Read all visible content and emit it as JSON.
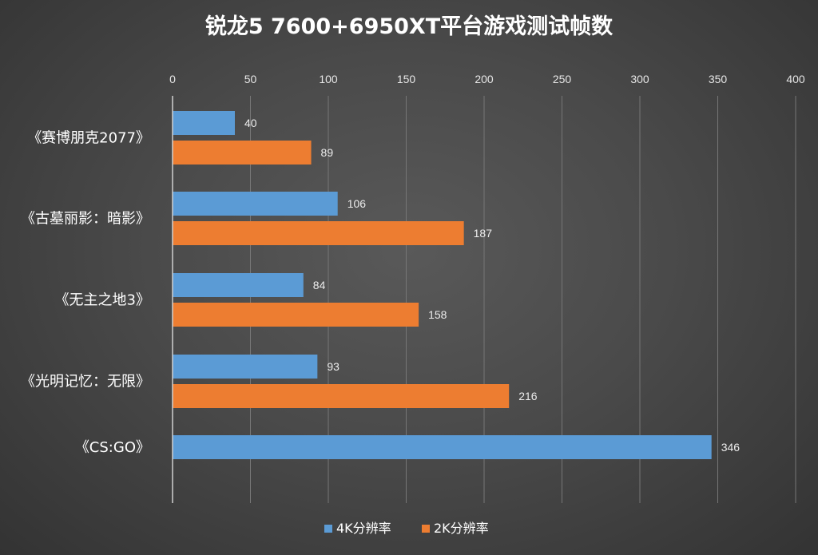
{
  "chart_data": {
    "type": "bar",
    "orientation": "horizontal",
    "title": "锐龙5 7600+6950XT平台游戏测试帧数",
    "categories": [
      "《赛博朋克2077》",
      "《古墓丽影：暗影》",
      "《无主之地3》",
      "《光明记忆：无限》",
      "《CS:GO》"
    ],
    "series": [
      {
        "name": "4K分辨率",
        "color": "#5b9bd5",
        "values": [
          40,
          106,
          84,
          93,
          346
        ]
      },
      {
        "name": "2K分辨率",
        "color": "#ed7d31",
        "values": [
          89,
          187,
          158,
          216,
          null
        ]
      }
    ],
    "xlim": [
      0,
      400
    ],
    "xticks": [
      0,
      50,
      100,
      150,
      200,
      250,
      300,
      350,
      400
    ],
    "x_axis_position": "top",
    "grid": true,
    "legend": "bottom"
  }
}
